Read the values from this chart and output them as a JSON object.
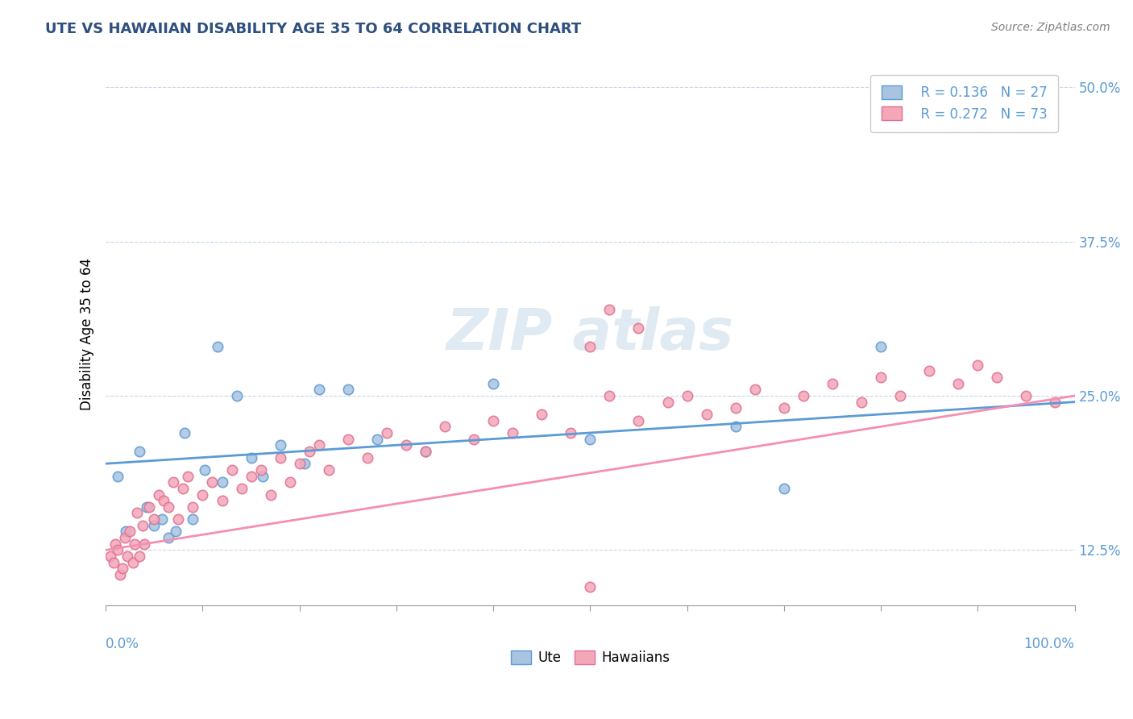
{
  "title": "UTE VS HAWAIIAN DISABILITY AGE 35 TO 64 CORRELATION CHART",
  "source": "Source: ZipAtlas.com",
  "ylabel": "Disability Age 35 to 64",
  "xlim": [
    0.0,
    100.0
  ],
  "ylim": [
    8.0,
    52.0
  ],
  "ytick_values": [
    12.5,
    25.0,
    37.5,
    50.0
  ],
  "legend_r_ute": "R = 0.136",
  "legend_n_ute": "N = 27",
  "legend_r_hawaiian": "R = 0.272",
  "legend_n_hawaiian": "N = 73",
  "ute_color": "#a8c4e0",
  "ute_edge_color": "#5b9bd5",
  "hawaiian_color": "#f4a7b9",
  "hawaiian_edge_color": "#e07090",
  "ute_line_color": "#5b9bd5",
  "hawaiian_line_color": "#f48fb1",
  "background_color": "#ffffff",
  "ute_scatter_x": [
    1.2,
    2.1,
    3.5,
    4.2,
    5.0,
    5.8,
    6.5,
    7.2,
    8.1,
    9.0,
    10.2,
    11.5,
    12.0,
    13.5,
    15.0,
    16.2,
    18.0,
    20.5,
    22.0,
    25.0,
    28.0,
    33.0,
    40.0,
    50.0,
    65.0,
    70.0,
    80.0
  ],
  "ute_scatter_y": [
    18.5,
    14.0,
    20.5,
    16.0,
    14.5,
    15.0,
    13.5,
    14.0,
    22.0,
    15.0,
    19.0,
    29.0,
    18.0,
    25.0,
    20.0,
    18.5,
    21.0,
    19.5,
    25.5,
    25.5,
    21.5,
    20.5,
    26.0,
    21.5,
    22.5,
    17.5,
    29.0
  ],
  "hawaiian_scatter_x": [
    0.5,
    0.8,
    1.0,
    1.2,
    1.5,
    1.7,
    2.0,
    2.2,
    2.5,
    2.8,
    3.0,
    3.2,
    3.5,
    3.8,
    4.0,
    4.5,
    5.0,
    5.5,
    6.0,
    6.5,
    7.0,
    7.5,
    8.0,
    8.5,
    9.0,
    10.0,
    11.0,
    12.0,
    13.0,
    14.0,
    15.0,
    16.0,
    17.0,
    18.0,
    19.0,
    20.0,
    21.0,
    22.0,
    23.0,
    25.0,
    27.0,
    29.0,
    31.0,
    33.0,
    35.0,
    38.0,
    40.0,
    42.0,
    45.0,
    48.0,
    50.0,
    52.0,
    55.0,
    58.0,
    60.0,
    62.0,
    65.0,
    67.0,
    70.0,
    72.0,
    75.0,
    78.0,
    80.0,
    82.0,
    85.0,
    88.0,
    90.0,
    92.0,
    95.0,
    98.0,
    50.0,
    55.0,
    52.0
  ],
  "hawaiian_scatter_y": [
    12.0,
    11.5,
    13.0,
    12.5,
    10.5,
    11.0,
    13.5,
    12.0,
    14.0,
    11.5,
    13.0,
    15.5,
    12.0,
    14.5,
    13.0,
    16.0,
    15.0,
    17.0,
    16.5,
    16.0,
    18.0,
    15.0,
    17.5,
    18.5,
    16.0,
    17.0,
    18.0,
    16.5,
    19.0,
    17.5,
    18.5,
    19.0,
    17.0,
    20.0,
    18.0,
    19.5,
    20.5,
    21.0,
    19.0,
    21.5,
    20.0,
    22.0,
    21.0,
    20.5,
    22.5,
    21.5,
    23.0,
    22.0,
    23.5,
    22.0,
    9.5,
    25.0,
    23.0,
    24.5,
    25.0,
    23.5,
    24.0,
    25.5,
    24.0,
    25.0,
    26.0,
    24.5,
    26.5,
    25.0,
    27.0,
    26.0,
    27.5,
    26.5,
    25.0,
    24.5,
    29.0,
    30.5,
    32.0
  ],
  "ute_trendline_x": [
    0.0,
    100.0
  ],
  "ute_trendline_y": [
    19.5,
    24.5
  ],
  "hawaiian_trendline_x": [
    0.0,
    100.0
  ],
  "hawaiian_trendline_y": [
    12.5,
    25.0
  ]
}
